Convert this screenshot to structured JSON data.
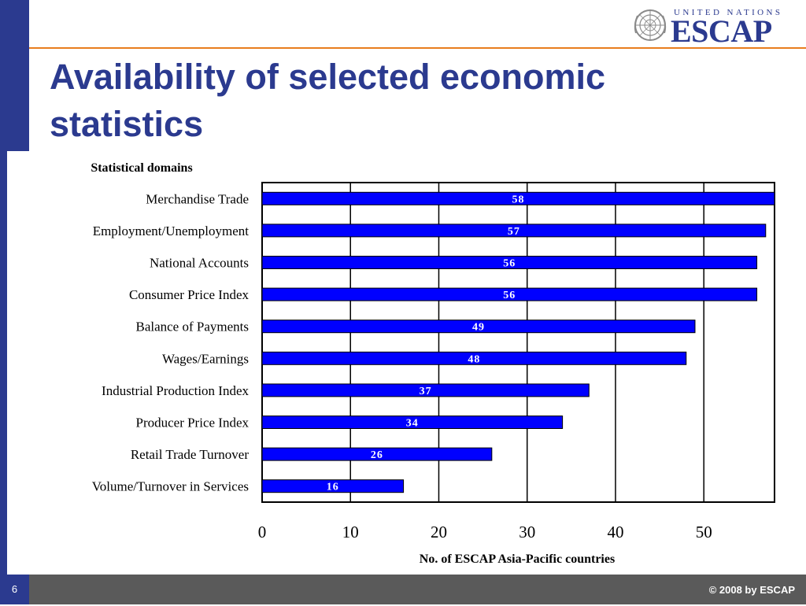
{
  "slide": {
    "title": "Availability of selected economic statistics",
    "page_number": "6",
    "copyright": "© 2008 by ESCAP",
    "logo_top": "UNITED NATIONS",
    "logo_main": "ESCAP"
  },
  "colors": {
    "brand_blue": "#2b3a8f",
    "accent_orange": "#e87d1e",
    "bar_fill": "#0000ff",
    "footer_gray": "#5a5a5a"
  },
  "icons": [
    "un-emblem-icon"
  ],
  "chart_data": {
    "type": "bar",
    "orientation": "horizontal",
    "categories": [
      "Merchandise Trade",
      "Employment/Unemployment",
      "National Accounts",
      "Consumer Price Index",
      "Balance of Payments",
      "Wages/Earnings",
      "Industrial Production Index",
      "Producer Price Index",
      "Retail Trade Turnover",
      "Volume/Turnover in Services"
    ],
    "values": [
      58,
      57,
      56,
      56,
      49,
      48,
      37,
      34,
      26,
      16
    ],
    "data_labels": [
      "58",
      "57",
      "56",
      "56",
      "49",
      "48",
      "37",
      "34",
      "26",
      "16"
    ],
    "category_axis_title": "Statistical domains",
    "xlabel": "No. of ESCAP Asia-Pacific countries",
    "xlim": [
      0,
      58
    ],
    "xticks": [
      0,
      10,
      20,
      30,
      40,
      50
    ],
    "grid": "vertical",
    "legend": "none"
  }
}
